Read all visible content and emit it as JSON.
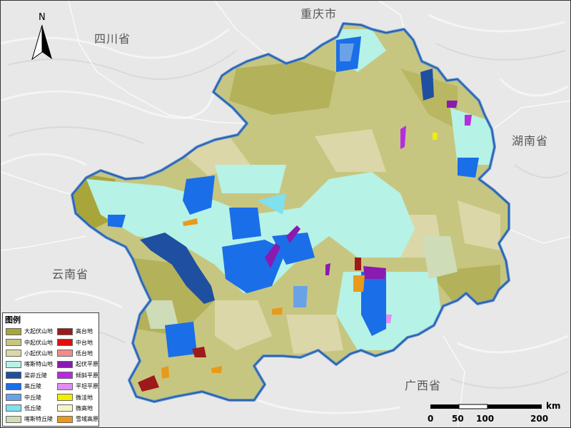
{
  "map": {
    "north_label": "N",
    "neighbor_labels": {
      "sichuan": "四川省",
      "chongqing": "重庆市",
      "hunan": "湖南省",
      "yunnan": "云南省",
      "guangxi": "广西省"
    },
    "legend": {
      "title": "图例",
      "items": [
        {
          "label": "大起伏山地",
          "color": "#a8a63a"
        },
        {
          "label": "中起伏山地",
          "color": "#c7c680"
        },
        {
          "label": "小起伏山地",
          "color": "#dcd7a8"
        },
        {
          "label": "喀斯特山地",
          "color": "#b6f2e6"
        },
        {
          "label": "梁峁丘陵",
          "color": "#1f4fa0"
        },
        {
          "label": "高丘陵",
          "color": "#1a6ee8"
        },
        {
          "label": "中丘陵",
          "color": "#6aa2e8"
        },
        {
          "label": "低丘陵",
          "color": "#7fe0f0"
        },
        {
          "label": "喀斯特丘陵",
          "color": "#cfdcb8"
        },
        {
          "label": "高台地",
          "color": "#9e1a1a"
        },
        {
          "label": "中台地",
          "color": "#e01010"
        },
        {
          "label": "低台地",
          "color": "#f08c8c"
        },
        {
          "label": "起伏平原",
          "color": "#8a1ab0"
        },
        {
          "label": "倾斜平原",
          "color": "#b42ee0"
        },
        {
          "label": "平坦平原",
          "color": "#e08ef0"
        },
        {
          "label": "微洼地",
          "color": "#f0f000"
        },
        {
          "label": "微高地",
          "color": "#f4f4c8"
        },
        {
          "label": "雪域高原",
          "color": "#e89a1a"
        }
      ]
    },
    "scale_bar": {
      "unit": "km",
      "ticks": [
        "0",
        "50",
        "100",
        "200"
      ]
    }
  }
}
